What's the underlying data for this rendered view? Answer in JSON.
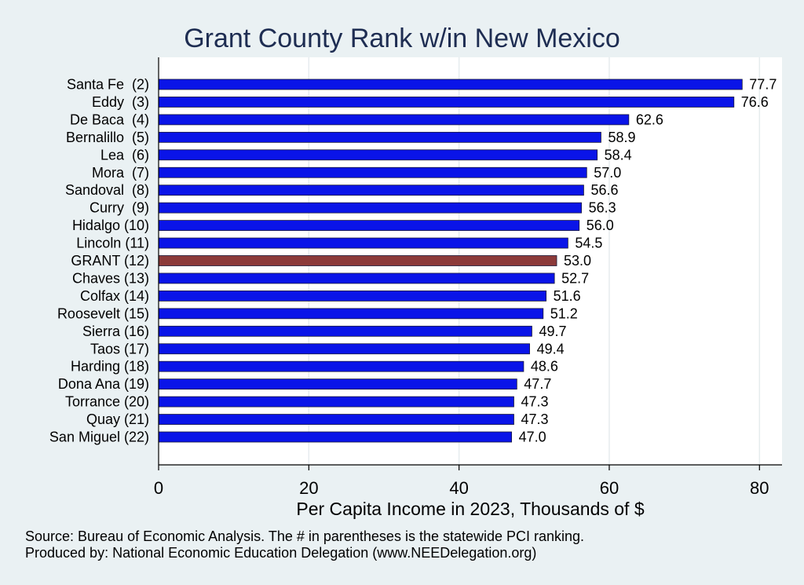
{
  "chart_data": {
    "type": "bar",
    "orientation": "horizontal",
    "title": "Grant County Rank w/in New Mexico",
    "xlabel": "Per Capita Income in 2023, Thousands of $",
    "ylabel": "",
    "xlim": [
      0,
      83
    ],
    "xticks": [
      0,
      20,
      40,
      60,
      80
    ],
    "grid": true,
    "categories": [
      "Santa Fe  (2)",
      "Eddy  (3)",
      "De Baca  (4)",
      "Bernalillo  (5)",
      "Lea  (6)",
      "Mora  (7)",
      "Sandoval  (8)",
      "Curry  (9)",
      "Hidalgo (10)",
      "Lincoln (11)",
      "GRANT (12)",
      "Chaves (13)",
      "Colfax (14)",
      "Roosevelt (15)",
      "Sierra (16)",
      "Taos (17)",
      "Harding (18)",
      "Dona Ana (19)",
      "Torrance (20)",
      "Quay (21)",
      "San Miguel (22)"
    ],
    "values": [
      77.7,
      76.6,
      62.6,
      58.9,
      58.4,
      57.0,
      56.6,
      56.3,
      56.0,
      54.5,
      53.0,
      52.7,
      51.6,
      51.2,
      49.7,
      49.4,
      48.6,
      47.7,
      47.3,
      47.3,
      47.0
    ],
    "value_labels": [
      "77.7",
      "76.6",
      "62.6",
      "58.9",
      "58.4",
      "57.0",
      "56.6",
      "56.3",
      "56.0",
      "54.5",
      "53.0",
      "52.7",
      "51.6",
      "51.2",
      "49.7",
      "49.4",
      "48.6",
      "47.7",
      "47.3",
      "47.3",
      "47.0"
    ],
    "highlight": "GRANT (12)",
    "colors": {
      "bar": "#0a14e8",
      "highlight": "#8c3a3a",
      "edge": "#1a1a3a",
      "plot_bg": "#ffffff",
      "grid": "#e6ecee"
    }
  },
  "footer": {
    "source": "Source: Bureau of Economic Analysis. The # in parentheses is the statewide PCI ranking.",
    "produced": "Produced by: National Economic Education Delegation (www.NEEDelegation.org)"
  }
}
